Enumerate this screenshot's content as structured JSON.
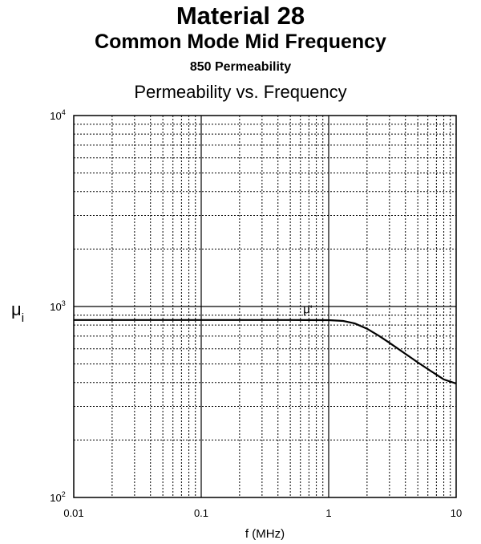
{
  "header": {
    "title": "Material 28",
    "subtitle": "Common Mode Mid Frequency",
    "permeability_label": "850 Permeability",
    "chart_title": "Permeability vs. Frequency"
  },
  "chart_data": {
    "type": "line",
    "title": "Permeability vs. Frequency",
    "xlabel": "f (MHz)",
    "ylabel": "μ",
    "ylabel_subscript": "i",
    "xscale": "log",
    "yscale": "log",
    "xlim": [
      0.01,
      10
    ],
    "ylim": [
      100,
      10000
    ],
    "grid": true,
    "x_ticks": [
      "0.01",
      "0.1",
      "1",
      "10"
    ],
    "y_ticks": [
      {
        "base": "10",
        "exp": "2",
        "value": 100
      },
      {
        "base": "10",
        "exp": "3",
        "value": 1000
      },
      {
        "base": "10",
        "exp": "4",
        "value": 10000
      }
    ],
    "series": [
      {
        "label": "μ'",
        "x": [
          0.01,
          0.1,
          0.5,
          1.0,
          1.3,
          1.6,
          2.0,
          2.5,
          3.0,
          4.0,
          5.0,
          6.0,
          7.0,
          8.0,
          10.0
        ],
        "y": [
          850,
          850,
          850,
          848,
          840,
          815,
          765,
          700,
          645,
          565,
          510,
          470,
          440,
          415,
          395
        ]
      }
    ],
    "annotations": [
      {
        "text": "μ'",
        "x": 0.63,
        "y": 920
      }
    ]
  }
}
